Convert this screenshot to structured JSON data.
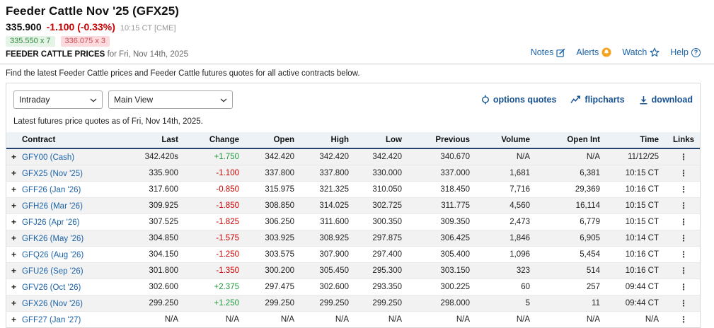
{
  "header": {
    "title": "Feeder Cattle Nov '25 (GFX25)",
    "last_price": "335.900",
    "change": "-1.100 (-0.33%)",
    "quote_time": "10:15 CT [CME]",
    "bid": "335.550 x 7",
    "ask": "336.075 x 3",
    "section_title": "FEEDER CATTLE PRICES",
    "section_date": "for Fri, Nov 14th, 2025",
    "nav": {
      "notes": "Notes",
      "alerts": "Alerts",
      "watch": "Watch",
      "help": "Help"
    }
  },
  "description": "Find the latest Feeder Cattle prices and Feeder Cattle futures quotes for all active contracts below.",
  "toolbar": {
    "frequency_select": "Intraday",
    "view_select": "Main View",
    "options_quotes_label": "options quotes",
    "flipcharts_label": "flipcharts",
    "download_label": "download"
  },
  "as_of": "Latest futures price quotes as of Fri, Nov 14th, 2025.",
  "table": {
    "columns": [
      "Contract",
      "Last",
      "Change",
      "Open",
      "High",
      "Low",
      "Previous",
      "Volume",
      "Open Int",
      "Time",
      "Links"
    ],
    "rows": [
      {
        "contract": "GFY00 (Cash)",
        "last": "342.420s",
        "change": "+1.750",
        "open": "342.420",
        "high": "342.420",
        "low": "342.420",
        "previous": "340.670",
        "volume": "N/A",
        "open_int": "N/A",
        "time": "11/12/25"
      },
      {
        "contract": "GFX25 (Nov '25)",
        "last": "335.900",
        "change": "-1.100",
        "open": "337.800",
        "high": "337.800",
        "low": "330.000",
        "previous": "337.000",
        "volume": "1,681",
        "open_int": "6,381",
        "time": "10:15 CT"
      },
      {
        "contract": "GFF26 (Jan '26)",
        "last": "317.600",
        "change": "-0.850",
        "open": "315.975",
        "high": "321.325",
        "low": "310.050",
        "previous": "318.450",
        "volume": "7,716",
        "open_int": "29,369",
        "time": "10:16 CT"
      },
      {
        "contract": "GFH26 (Mar '26)",
        "last": "309.925",
        "change": "-1.850",
        "open": "308.850",
        "high": "314.025",
        "low": "302.725",
        "previous": "311.775",
        "volume": "4,560",
        "open_int": "16,114",
        "time": "10:15 CT"
      },
      {
        "contract": "GFJ26 (Apr '26)",
        "last": "307.525",
        "change": "-1.825",
        "open": "306.250",
        "high": "311.600",
        "low": "300.350",
        "previous": "309.350",
        "volume": "2,473",
        "open_int": "6,779",
        "time": "10:15 CT"
      },
      {
        "contract": "GFK26 (May '26)",
        "last": "304.850",
        "change": "-1.575",
        "open": "303.925",
        "high": "308.925",
        "low": "297.875",
        "previous": "306.425",
        "volume": "1,846",
        "open_int": "6,905",
        "time": "10:14 CT"
      },
      {
        "contract": "GFQ26 (Aug '26)",
        "last": "304.150",
        "change": "-1.250",
        "open": "303.575",
        "high": "307.900",
        "low": "297.400",
        "previous": "305.400",
        "volume": "1,096",
        "open_int": "5,454",
        "time": "10:16 CT"
      },
      {
        "contract": "GFU26 (Sep '26)",
        "last": "301.800",
        "change": "-1.350",
        "open": "300.200",
        "high": "305.450",
        "low": "295.300",
        "previous": "303.150",
        "volume": "323",
        "open_int": "514",
        "time": "10:16 CT"
      },
      {
        "contract": "GFV26 (Oct '26)",
        "last": "302.600",
        "change": "+2.375",
        "open": "297.475",
        "high": "302.600",
        "low": "293.350",
        "previous": "300.225",
        "volume": "60",
        "open_int": "257",
        "time": "09:44 CT"
      },
      {
        "contract": "GFX26 (Nov '26)",
        "last": "299.250",
        "change": "+1.250",
        "open": "299.250",
        "high": "299.250",
        "low": "299.250",
        "previous": "298.000",
        "volume": "5",
        "open_int": "11",
        "time": "09:44 CT"
      },
      {
        "contract": "GFF27 (Jan '27)",
        "last": "N/A",
        "change": "N/A",
        "open": "N/A",
        "high": "N/A",
        "low": "N/A",
        "previous": "N/A",
        "volume": "N/A",
        "open_int": "N/A",
        "time": "N/A"
      }
    ]
  },
  "colors": {
    "accent_blue": "#1b63a8",
    "toolbar_blue": "#17518f",
    "negative_red": "#cc0000",
    "positive_green": "#1f9a3d",
    "bid_text": "#2e8b3f",
    "bid_bg": "#e4f3e6",
    "ask_text": "#d14b52",
    "ask_bg": "#fbdade",
    "alert_orange": "#f5a21d",
    "header_navy": "#23406e",
    "table_header_bg": "#edf2f7"
  }
}
